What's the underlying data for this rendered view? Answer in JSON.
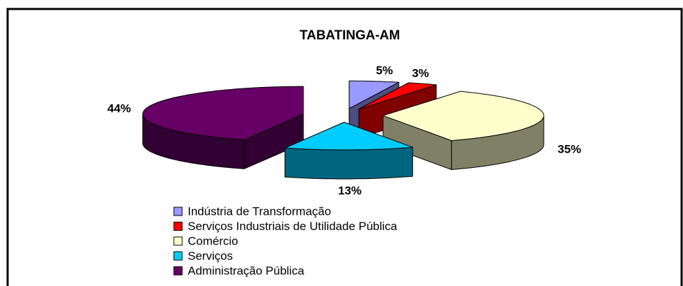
{
  "chart_data": {
    "type": "pie",
    "title": "TABATINGA-AM",
    "categories": [
      "Indústria de Transformação",
      "Serviços Industriais de Utilidade Pública",
      "Comércio",
      "Serviços",
      "Administração Pública"
    ],
    "values": [
      5,
      3,
      35,
      13,
      44
    ],
    "value_labels": [
      "5%",
      "3%",
      "35%",
      "13%",
      "44%"
    ],
    "colors": [
      "#9999ff",
      "#ff0000",
      "#ffffcc",
      "#00ccff",
      "#660066"
    ],
    "legend": "bottom"
  }
}
